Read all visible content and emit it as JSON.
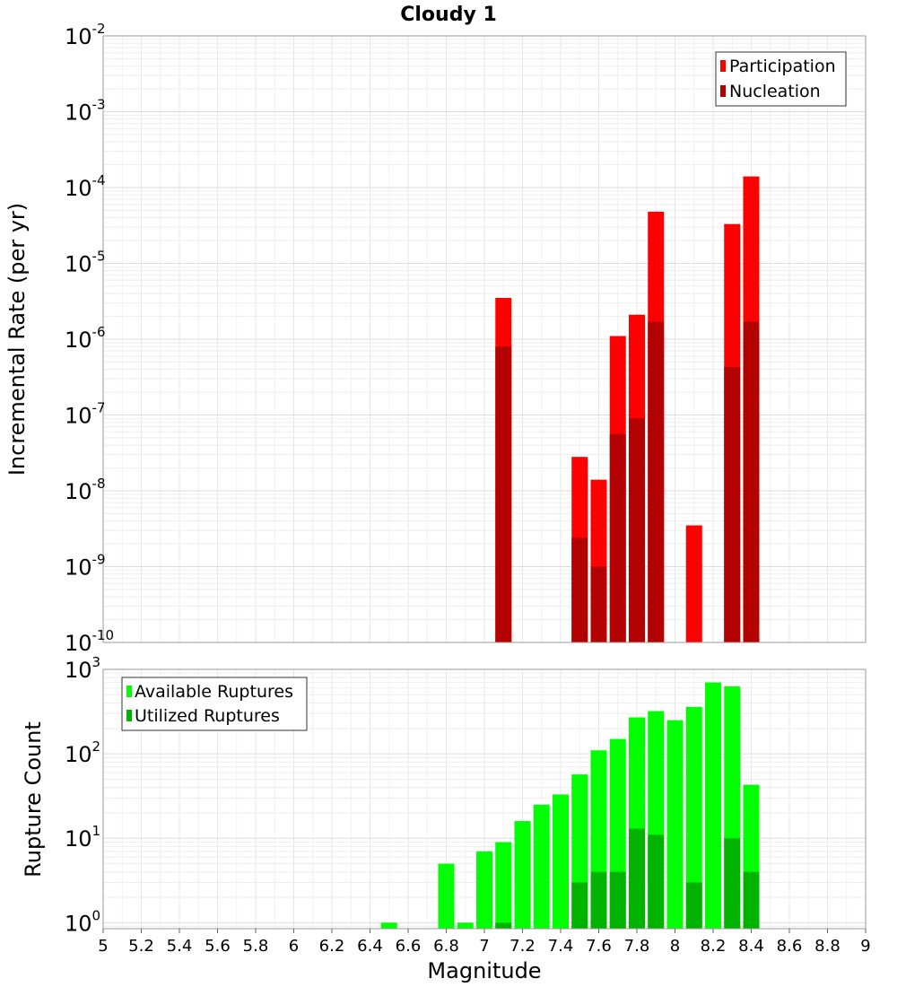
{
  "chart_data": [
    {
      "type": "bar",
      "title": "Cloudy 1",
      "ylabel": "Incremental Rate (per yr)",
      "xlim": [
        5,
        9
      ],
      "ylim": [
        1e-10,
        0.01
      ],
      "yscale": "log",
      "ytick_exponents": [
        -10,
        -9,
        -8,
        -7,
        -6,
        -5,
        -4,
        -3,
        -2
      ],
      "grid": true,
      "legend_position": "top-right",
      "stacking": "overlay",
      "series": [
        {
          "name": "Participation",
          "color": "#ff0000",
          "x": [
            7.1,
            7.5,
            7.6,
            7.7,
            7.8,
            7.9,
            8.1,
            8.3,
            8.4
          ],
          "values": [
            3.5e-06,
            2.8e-08,
            1.4e-08,
            1.1e-06,
            2.1e-06,
            4.8e-05,
            3.5e-09,
            3.3e-05,
            0.00014
          ]
        },
        {
          "name": "Nucleation",
          "color": "#b30000",
          "x": [
            7.1,
            7.5,
            7.6,
            7.7,
            7.8,
            7.9,
            8.3,
            8.4
          ],
          "values": [
            8e-07,
            2.4e-09,
            1e-09,
            5.6e-08,
            9e-08,
            1.7e-06,
            4.3e-07,
            1.7e-06
          ]
        }
      ]
    },
    {
      "type": "bar",
      "xlabel": "Magnitude",
      "ylabel": "Rupture Count",
      "xlim": [
        5,
        9
      ],
      "ylim": [
        0.85,
        1000
      ],
      "yscale": "log",
      "ytick_exponents": [
        0,
        1,
        2,
        3
      ],
      "grid": true,
      "legend_position": "top-left",
      "stacking": "overlay",
      "xticks": [
        "5",
        "5.2",
        "5.4",
        "5.6",
        "5.8",
        "6",
        "6.2",
        "6.4",
        "6.6",
        "6.8",
        "7",
        "7.2",
        "7.4",
        "7.6",
        "7.8",
        "8",
        "8.2",
        "8.4",
        "8.6",
        "8.8",
        "9"
      ],
      "series": [
        {
          "name": "Available Ruptures",
          "color": "#00ff00",
          "x": [
            6.5,
            6.8,
            6.9,
            7.0,
            7.1,
            7.2,
            7.3,
            7.4,
            7.5,
            7.6,
            7.7,
            7.8,
            7.9,
            8.0,
            8.1,
            8.2,
            8.3,
            8.4
          ],
          "values": [
            1,
            5,
            1,
            7,
            9,
            16,
            25,
            33,
            57,
            110,
            150,
            270,
            320,
            250,
            360,
            700,
            630,
            43
          ]
        },
        {
          "name": "Utilized Ruptures",
          "color": "#00b300",
          "x": [
            7.1,
            7.5,
            7.6,
            7.7,
            7.8,
            7.9,
            8.1,
            8.3,
            8.4
          ],
          "values": [
            1,
            3,
            4,
            4,
            13,
            11,
            3,
            10,
            4
          ]
        }
      ]
    }
  ]
}
